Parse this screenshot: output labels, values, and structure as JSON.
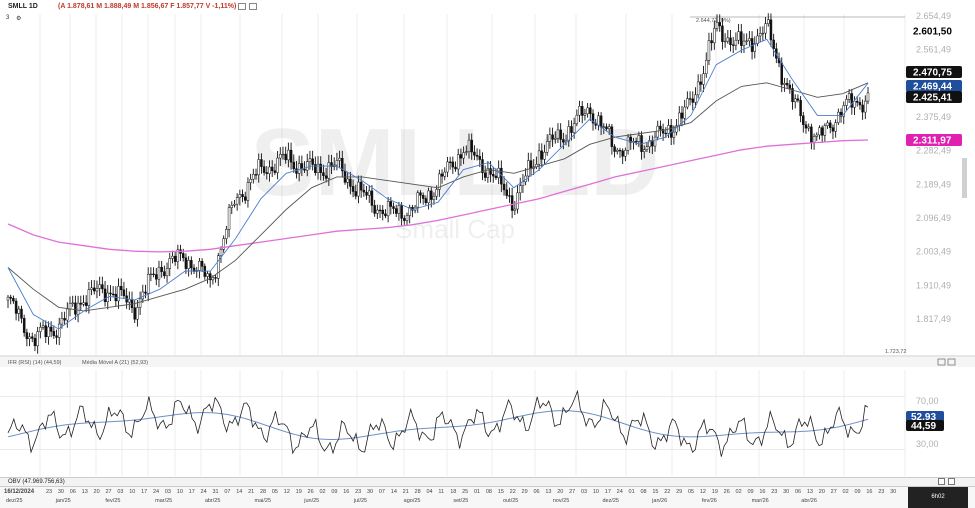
{
  "header": {
    "symbol": "SMLL 1D",
    "ohlc": "(A 1.878,61 M 1.888,49 M 1.856,67 F 1.857,77 V -1,11%)",
    "subrow": "3"
  },
  "watermark": {
    "big": "SMLL 1D",
    "small": "Small Cap"
  },
  "price_axis": [
    "2.654,49",
    "2.561,49",
    "2.375,49",
    "2.282,49",
    "2.189,49",
    "2.096,49",
    "2.003,49",
    "1.910,49",
    "1.817,49"
  ],
  "price_tags": [
    {
      "text": "2.601,50",
      "color": "#000000",
      "bg": ""
    },
    {
      "text": "2.470,75",
      "color": "#ffffff",
      "bg": "#111111"
    },
    {
      "text": "2.469,44",
      "color": "#ffffff",
      "bg": "#1f4e9c"
    },
    {
      "text": "2.425,41",
      "color": "#ffffff",
      "bg": "#111111"
    },
    {
      "text": "2.311,97",
      "color": "#ffffff",
      "bg": "#e020b0"
    }
  ],
  "annotations": {
    "high_label": "2.644,72 (0%)",
    "low_label": "1.723,72"
  },
  "rsi": {
    "title": "IFR (RSI) (14) (44,59)",
    "ma_title": "Média Móvel A (21) (52,93)",
    "axis": [
      "70,00",
      "30,00"
    ],
    "tags": [
      {
        "text": "52,93",
        "color": "#ffffff",
        "bg": "#1f4e9c"
      },
      {
        "text": "44,59",
        "color": "#ffffff",
        "bg": "#111111"
      }
    ]
  },
  "obv_title": "OBV (47.969.756,63)",
  "time_axis": {
    "date_label": "16/12/2024",
    "clock": "6h02",
    "day_ticks": [
      "23",
      "30",
      "06",
      "13",
      "20",
      "27",
      "03",
      "10",
      "17",
      "24",
      "03",
      "10",
      "17",
      "24",
      "31",
      "07",
      "14",
      "21",
      "28",
      "05",
      "12",
      "19",
      "26",
      "02",
      "09",
      "16",
      "23",
      "30",
      "07",
      "14",
      "21",
      "28",
      "04",
      "11",
      "18",
      "25",
      "01",
      "08",
      "15",
      "22",
      "29",
      "06",
      "13",
      "20",
      "27",
      "03",
      "10",
      "17",
      "24",
      "01",
      "08",
      "15",
      "22",
      "29",
      "05",
      "12",
      "19",
      "26",
      "02",
      "09",
      "16",
      "23",
      "30",
      "06",
      "13",
      "20",
      "27",
      "02",
      "09",
      "16",
      "23",
      "30"
    ],
    "month_ticks": [
      "dez/25",
      "jan/25",
      "fev/25",
      "mar/25",
      "abr/25",
      "mai/25",
      "jun/25",
      "jul/25",
      "ago/25",
      "set/25",
      "out/25",
      "nov/25",
      "dez/25",
      "jan/26",
      "fev/26",
      "mar/26",
      "abr/26"
    ]
  },
  "colors": {
    "ma_fast": "#4a7fd0",
    "ma_slow": "#555555",
    "ma_long": "#e070d8",
    "candle": "#111111",
    "rsi_line": "#222222",
    "rsi_ma": "#6e90c8"
  },
  "chart_data": {
    "type": "line",
    "title": "SMLL 1D",
    "ylim": [
      1723.72,
      2654.49
    ],
    "x_start": "2024-12-16",
    "x_end": "2026-04-08",
    "series": [
      {
        "name": "SMLL",
        "x": [
          "2024-12-16",
          "2024-12-30",
          "2025-01-13",
          "2025-01-27",
          "2025-02-10",
          "2025-02-24",
          "2025-03-10",
          "2025-03-24",
          "2025-04-07",
          "2025-04-21",
          "2025-05-05",
          "2025-05-19",
          "2025-06-02",
          "2025-06-16",
          "2025-06-30",
          "2025-07-14",
          "2025-07-28",
          "2025-08-11",
          "2025-08-25",
          "2025-09-08",
          "2025-09-22",
          "2025-10-06",
          "2025-10-20",
          "2025-11-03",
          "2025-11-17",
          "2025-12-01",
          "2025-12-15",
          "2025-12-29",
          "2026-01-12",
          "2026-01-26",
          "2026-02-09",
          "2026-02-23",
          "2026-03-09",
          "2026-03-23",
          "2026-04-06"
        ],
        "values": [
          1870,
          1760,
          1800,
          1880,
          1900,
          1850,
          1960,
          1990,
          1920,
          2150,
          2230,
          2260,
          2230,
          2240,
          2160,
          2110,
          2120,
          2190,
          2290,
          2230,
          2140,
          2280,
          2330,
          2400,
          2290,
          2300,
          2330,
          2410,
          2620,
          2570,
          2620,
          2420,
          2310,
          2400,
          2430
        ]
      },
      {
        "name": "Média Móvel",
        "values": [
          1960,
          1830,
          1790,
          1840,
          1880,
          1870,
          1900,
          1950,
          1950,
          2040,
          2150,
          2220,
          2240,
          2240,
          2200,
          2150,
          2120,
          2140,
          2230,
          2250,
          2180,
          2230,
          2300,
          2370,
          2320,
          2300,
          2320,
          2380,
          2520,
          2560,
          2590,
          2480,
          2380,
          2380,
          2469
        ]
      },
      {
        "name": "Média Móvel",
        "values": [
          1960,
          1900,
          1850,
          1840,
          1850,
          1860,
          1880,
          1900,
          1930,
          1980,
          2050,
          2120,
          2180,
          2210,
          2210,
          2200,
          2190,
          2180,
          2210,
          2230,
          2220,
          2240,
          2260,
          2300,
          2320,
          2330,
          2340,
          2360,
          2420,
          2460,
          2470,
          2450,
          2430,
          2440,
          2470
        ]
      },
      {
        "name": "Média Móvel",
        "values": [
          2080,
          2050,
          2030,
          2020,
          2010,
          2005,
          2003,
          2005,
          2010,
          2020,
          2030,
          2040,
          2050,
          2060,
          2065,
          2070,
          2078,
          2090,
          2105,
          2120,
          2135,
          2150,
          2170,
          2190,
          2210,
          2225,
          2240,
          2255,
          2270,
          2285,
          2295,
          2300,
          2305,
          2310,
          2312
        ]
      }
    ]
  }
}
